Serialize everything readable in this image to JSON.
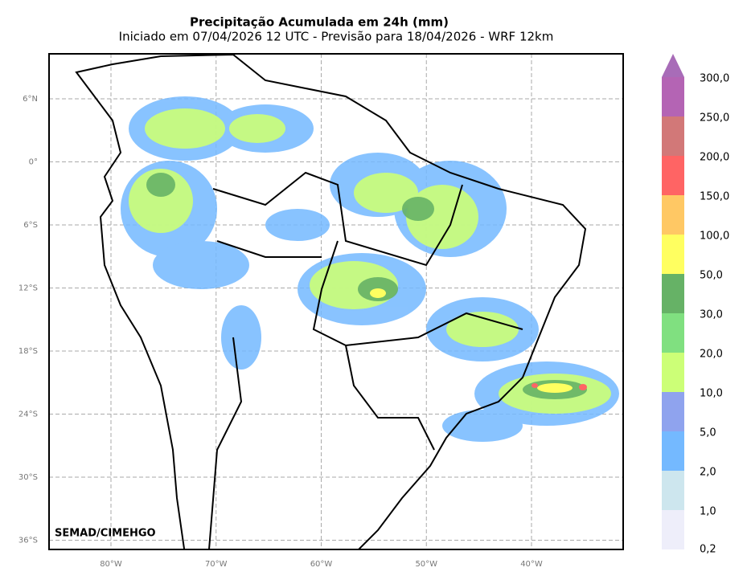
{
  "title": "Precipitação Acumulada em 24h (mm)",
  "subtitle": "Iniciado em 07/04/2026 12 UTC - Previsão para 18/04/2026 - WRF 12km",
  "lat_labels": [
    "6°N",
    "0°",
    "6°S",
    "12°S",
    "18°S",
    "24°S",
    "30°S",
    "36°S"
  ],
  "lon_labels": [
    "80°W",
    "70°W",
    "60°W",
    "50°W",
    "40°W"
  ],
  "watermark": "SEMAD/CIMEHGO",
  "colorbar": {
    "labels": [
      "0,2",
      "1,0",
      "2,0",
      "5,0",
      "10,0",
      "20,0",
      "30,0",
      "50,0",
      "100,0",
      "150,0",
      "200,0",
      "250,0",
      "300,0"
    ],
    "colors": [
      "#eeeefa",
      "#cde6ee",
      "#74b9ff",
      "#8fa3ee",
      "#ccff77",
      "#80e080",
      "#66b266",
      "#ffff60",
      "#ffc864",
      "#ff6464",
      "#d27878",
      "#b464b4"
    ],
    "extend_color": "#a86cb8"
  }
}
